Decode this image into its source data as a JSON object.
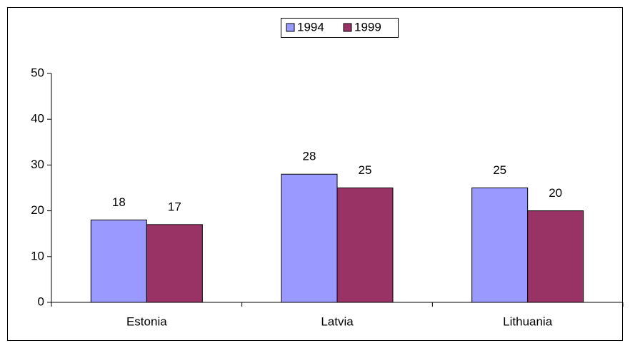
{
  "chart_data": {
    "type": "bar",
    "categories": [
      "Estonia",
      "Latvia",
      "Lithuania"
    ],
    "series": [
      {
        "name": "1994",
        "color": "#9999ff",
        "values": [
          18,
          28,
          25
        ]
      },
      {
        "name": "1999",
        "color": "#993366",
        "values": [
          17,
          25,
          20
        ]
      }
    ],
    "ylim": [
      0,
      50
    ],
    "yticks": [
      0,
      10,
      20,
      30,
      40,
      50
    ],
    "grid": false,
    "legend": "top"
  }
}
